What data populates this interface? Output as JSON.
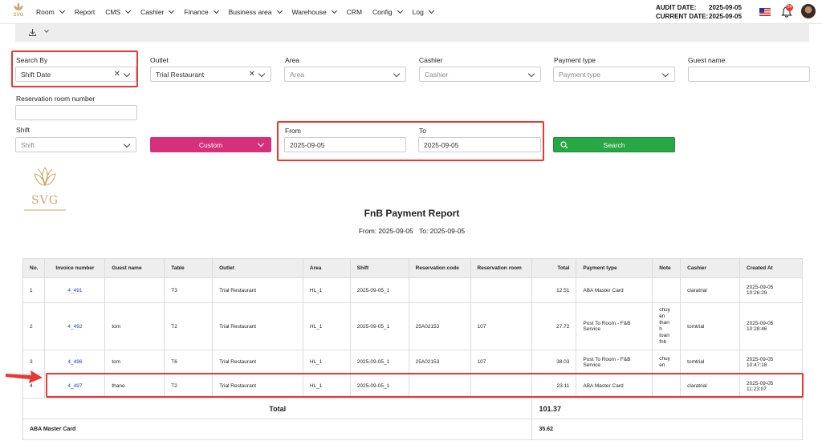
{
  "nav": {
    "logo_text": "SVG",
    "items": [
      {
        "label": "Room",
        "has_dropdown": true
      },
      {
        "label": "Report",
        "has_dropdown": false
      },
      {
        "label": "CMS",
        "has_dropdown": true
      },
      {
        "label": "Cashier",
        "has_dropdown": true
      },
      {
        "label": "Finance",
        "has_dropdown": true
      },
      {
        "label": "Business area",
        "has_dropdown": true
      },
      {
        "label": "Warehouse",
        "has_dropdown": true
      },
      {
        "label": "CRM",
        "has_dropdown": false
      },
      {
        "label": "Config",
        "has_dropdown": true
      },
      {
        "label": "Log",
        "has_dropdown": true
      }
    ],
    "audit_date_label": "AUDIT DATE:",
    "audit_date": "2025-09-05",
    "current_date_label": "CURRENT DATE:",
    "current_date": "2025-09-05",
    "notification_count": "34"
  },
  "filters": {
    "search_by": {
      "label": "Search By",
      "value": "Shift Date"
    },
    "outlet": {
      "label": "Outlet",
      "value": "Trial Restaurant"
    },
    "area": {
      "label": "Area",
      "placeholder": "Area"
    },
    "cashier": {
      "label": "Cashier",
      "placeholder": "Cashier"
    },
    "payment_type": {
      "label": "Payment type",
      "placeholder": "Payment type"
    },
    "guest_name": {
      "label": "Guest name",
      "value": ""
    },
    "reservation_room_number": {
      "label": "Reservation room number",
      "value": ""
    },
    "shift": {
      "label": "Shift",
      "placeholder": "Shift"
    },
    "period_button": "Custom",
    "from": {
      "label": "From",
      "value": "2025-09-05"
    },
    "to": {
      "label": "To",
      "value": "2025-09-05"
    },
    "search_button": "Search"
  },
  "report": {
    "logo_text": "SVG",
    "title": "FnB Payment Report",
    "from_text": "From: 2025-09-05",
    "to_text": "To: 2025-09-05",
    "columns": [
      "No.",
      "Invoice number",
      "Guest name",
      "Table",
      "Outlet",
      "Area",
      "Shift",
      "Reservation code",
      "Reservation room",
      "Total",
      "Payment type",
      "Note",
      "Cashier",
      "Created At"
    ],
    "rows": [
      {
        "no": "1",
        "invoice": "4_491",
        "guest": "",
        "table": "T3",
        "outlet": "Trial Restaurant",
        "area": "HL_1",
        "shift": "2025-09-05_1",
        "res_code": "",
        "res_room": "",
        "total": "12.51",
        "payment": "ABA Master Card",
        "note": "",
        "cashier": "claratrial",
        "created_date": "2025-09-05",
        "created_time": "10:26:29"
      },
      {
        "no": "2",
        "invoice": "4_492",
        "guest": "tom",
        "table": "T2",
        "outlet": "Trial Restaurant",
        "area": "HL_1",
        "shift": "2025-09-05_1",
        "res_code": "25A02153",
        "res_room": "107",
        "total": "27.72",
        "payment": "Post To Room - F&B Service",
        "note": "chuy\nen\nthan\nh\ntoan\nfnb",
        "cashier": "tomtrial",
        "created_date": "2025-09-05",
        "created_time": "10:28:46"
      },
      {
        "no": "3",
        "invoice": "4_496",
        "guest": "tom",
        "table": "T6",
        "outlet": "Trial Restaurant",
        "area": "HL_1",
        "shift": "2025-09-05_1",
        "res_code": "25A02153",
        "res_room": "107",
        "total": "38.03",
        "payment": "Post To Room - F&B Service",
        "note": "chuy\nen",
        "cashier": "tomtrial",
        "created_date": "2025-09-05",
        "created_time": "10:47:18"
      },
      {
        "no": "4",
        "invoice": "4_497",
        "guest": "thane",
        "table": "T2",
        "outlet": "Trial Restaurant",
        "area": "HL_1",
        "shift": "2025-09-05_1",
        "res_code": "",
        "res_room": "",
        "total": "23.11",
        "payment": "ABA Master Card",
        "note": "",
        "cashier": "claratrial",
        "created_date": "2025-09-05",
        "created_time": "11:23:07"
      }
    ],
    "total_label": "Total",
    "total_value": "101.37",
    "summary": [
      {
        "label": "ABA Master Card",
        "value": "35.62"
      }
    ]
  },
  "colors": {
    "highlight": "#e53935",
    "custom_button": "#d6307a",
    "search_button": "#28a745",
    "link": "#1f3fbf",
    "brand_gold": "#c8a96e"
  }
}
